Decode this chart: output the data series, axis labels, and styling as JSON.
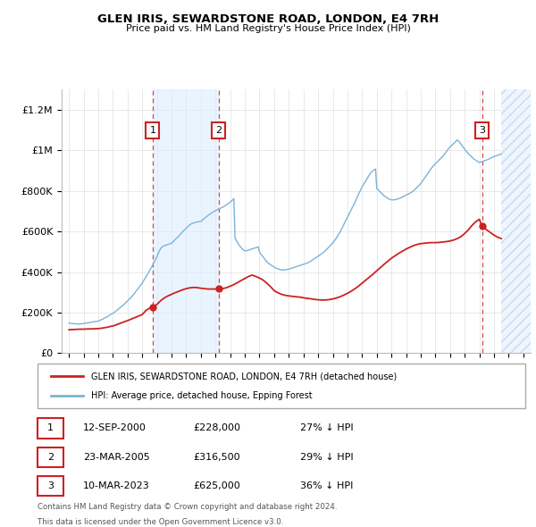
{
  "title": "GLEN IRIS, SEWARDSTONE ROAD, LONDON, E4 7RH",
  "subtitle": "Price paid vs. HM Land Registry's House Price Index (HPI)",
  "legend_line1": "GLEN IRIS, SEWARDSTONE ROAD, LONDON, E4 7RH (detached house)",
  "legend_line2": "HPI: Average price, detached house, Epping Forest",
  "footer1": "Contains HM Land Registry data © Crown copyright and database right 2024.",
  "footer2": "This data is licensed under the Open Government Licence v3.0.",
  "transactions": [
    {
      "num": 1,
      "date": "12-SEP-2000",
      "price": 228000,
      "pct": "27% ↓ HPI",
      "year": 2000.71
    },
    {
      "num": 2,
      "date": "23-MAR-2005",
      "price": 316500,
      "pct": "29% ↓ HPI",
      "year": 2005.22
    },
    {
      "num": 3,
      "date": "10-MAR-2023",
      "price": 625000,
      "pct": "36% ↓ HPI",
      "year": 2023.19
    }
  ],
  "hpi_color": "#7ab4d8",
  "price_color": "#cc2222",
  "vline_color": "#dd4444",
  "shade_color": "#ddeeff",
  "hatch_color": "#ccddee",
  "hpi_x": [
    1995.0,
    1995.08,
    1995.17,
    1995.25,
    1995.33,
    1995.42,
    1995.5,
    1995.58,
    1995.67,
    1995.75,
    1995.83,
    1995.92,
    1996.0,
    1996.08,
    1996.17,
    1996.25,
    1996.33,
    1996.42,
    1996.5,
    1996.58,
    1996.67,
    1996.75,
    1996.83,
    1996.92,
    1997.0,
    1997.08,
    1997.17,
    1997.25,
    1997.33,
    1997.42,
    1997.5,
    1997.58,
    1997.67,
    1997.75,
    1997.83,
    1997.92,
    1998.0,
    1998.08,
    1998.17,
    1998.25,
    1998.33,
    1998.42,
    1998.5,
    1998.58,
    1998.67,
    1998.75,
    1998.83,
    1998.92,
    1999.0,
    1999.08,
    1999.17,
    1999.25,
    1999.33,
    1999.42,
    1999.5,
    1999.58,
    1999.67,
    1999.75,
    1999.83,
    1999.92,
    2000.0,
    2000.08,
    2000.17,
    2000.25,
    2000.33,
    2000.42,
    2000.5,
    2000.58,
    2000.67,
    2000.75,
    2000.83,
    2000.92,
    2001.0,
    2001.08,
    2001.17,
    2001.25,
    2001.33,
    2001.42,
    2001.5,
    2001.58,
    2001.67,
    2001.75,
    2001.83,
    2001.92,
    2002.0,
    2002.08,
    2002.17,
    2002.25,
    2002.33,
    2002.42,
    2002.5,
    2002.58,
    2002.67,
    2002.75,
    2002.83,
    2002.92,
    2003.0,
    2003.08,
    2003.17,
    2003.25,
    2003.33,
    2003.42,
    2003.5,
    2003.58,
    2003.67,
    2003.75,
    2003.83,
    2003.92,
    2004.0,
    2004.08,
    2004.17,
    2004.25,
    2004.33,
    2004.42,
    2004.5,
    2004.58,
    2004.67,
    2004.75,
    2004.83,
    2004.92,
    2005.0,
    2005.08,
    2005.17,
    2005.25,
    2005.33,
    2005.42,
    2005.5,
    2005.58,
    2005.67,
    2005.75,
    2005.83,
    2005.92,
    2006.0,
    2006.08,
    2006.17,
    2006.25,
    2006.33,
    2006.42,
    2006.5,
    2006.58,
    2006.67,
    2006.75,
    2006.83,
    2006.92,
    2007.0,
    2007.08,
    2007.17,
    2007.25,
    2007.33,
    2007.42,
    2007.5,
    2007.58,
    2007.67,
    2007.75,
    2007.83,
    2007.92,
    2008.0,
    2008.08,
    2008.17,
    2008.25,
    2008.33,
    2008.42,
    2008.5,
    2008.58,
    2008.67,
    2008.75,
    2008.83,
    2008.92,
    2009.0,
    2009.08,
    2009.17,
    2009.25,
    2009.33,
    2009.42,
    2009.5,
    2009.58,
    2009.67,
    2009.75,
    2009.83,
    2009.92,
    2010.0,
    2010.08,
    2010.17,
    2010.25,
    2010.33,
    2010.42,
    2010.5,
    2010.58,
    2010.67,
    2010.75,
    2010.83,
    2010.92,
    2011.0,
    2011.08,
    2011.17,
    2011.25,
    2011.33,
    2011.42,
    2011.5,
    2011.58,
    2011.67,
    2011.75,
    2011.83,
    2011.92,
    2012.0,
    2012.08,
    2012.17,
    2012.25,
    2012.33,
    2012.42,
    2012.5,
    2012.58,
    2012.67,
    2012.75,
    2012.83,
    2012.92,
    2013.0,
    2013.08,
    2013.17,
    2013.25,
    2013.33,
    2013.42,
    2013.5,
    2013.58,
    2013.67,
    2013.75,
    2013.83,
    2013.92,
    2014.0,
    2014.08,
    2014.17,
    2014.25,
    2014.33,
    2014.42,
    2014.5,
    2014.58,
    2014.67,
    2014.75,
    2014.83,
    2014.92,
    2015.0,
    2015.08,
    2015.17,
    2015.25,
    2015.33,
    2015.42,
    2015.5,
    2015.58,
    2015.67,
    2015.75,
    2015.83,
    2015.92,
    2016.0,
    2016.08,
    2016.17,
    2016.25,
    2016.33,
    2016.42,
    2016.5,
    2016.58,
    2016.67,
    2016.75,
    2016.83,
    2016.92,
    2017.0,
    2017.08,
    2017.17,
    2017.25,
    2017.33,
    2017.42,
    2017.5,
    2017.58,
    2017.67,
    2017.75,
    2017.83,
    2017.92,
    2018.0,
    2018.08,
    2018.17,
    2018.25,
    2018.33,
    2018.42,
    2018.5,
    2018.58,
    2018.67,
    2018.75,
    2018.83,
    2018.92,
    2019.0,
    2019.08,
    2019.17,
    2019.25,
    2019.33,
    2019.42,
    2019.5,
    2019.58,
    2019.67,
    2019.75,
    2019.83,
    2019.92,
    2020.0,
    2020.08,
    2020.17,
    2020.25,
    2020.33,
    2020.42,
    2020.5,
    2020.58,
    2020.67,
    2020.75,
    2020.83,
    2020.92,
    2021.0,
    2021.08,
    2021.17,
    2021.25,
    2021.33,
    2021.42,
    2021.5,
    2021.58,
    2021.67,
    2021.75,
    2021.83,
    2021.92,
    2022.0,
    2022.08,
    2022.17,
    2022.25,
    2022.33,
    2022.42,
    2022.5,
    2022.58,
    2022.67,
    2022.75,
    2022.83,
    2022.92,
    2023.0,
    2023.08,
    2023.17,
    2023.25,
    2023.33,
    2023.42,
    2023.5,
    2023.58,
    2023.67,
    2023.75,
    2023.83,
    2023.92,
    2024.0,
    2024.08,
    2024.17,
    2024.25,
    2024.33,
    2024.42,
    2024.5
  ],
  "hpi_y": [
    148000,
    147000,
    146000,
    145500,
    145000,
    144500,
    144000,
    143500,
    143000,
    143500,
    144000,
    145000,
    146000,
    147000,
    148000,
    149000,
    150000,
    151000,
    152000,
    153000,
    154000,
    155000,
    156000,
    157000,
    158000,
    160000,
    163000,
    166000,
    169000,
    172000,
    175000,
    178000,
    182000,
    186000,
    190000,
    193000,
    196000,
    200000,
    205000,
    210000,
    215000,
    220000,
    225000,
    230000,
    235000,
    240000,
    246000,
    252000,
    258000,
    264000,
    270000,
    276000,
    282000,
    290000,
    298000,
    306000,
    314000,
    322000,
    330000,
    338000,
    346000,
    356000,
    366000,
    376000,
    386000,
    396000,
    406000,
    416000,
    428000,
    440000,
    452000,
    464000,
    476000,
    490000,
    504000,
    515000,
    522000,
    527000,
    530000,
    532000,
    534000,
    536000,
    538000,
    540000,
    542000,
    548000,
    554000,
    560000,
    566000,
    572000,
    578000,
    585000,
    592000,
    598000,
    604000,
    610000,
    616000,
    622000,
    628000,
    633000,
    637000,
    640000,
    642000,
    644000,
    646000,
    647000,
    648000,
    649000,
    650000,
    655000,
    660000,
    665000,
    670000,
    675000,
    680000,
    684000,
    688000,
    692000,
    696000,
    700000,
    703000,
    706000,
    709000,
    712000,
    715000,
    718000,
    720000,
    724000,
    728000,
    732000,
    736000,
    740000,
    744000,
    750000,
    756000,
    762000,
    568000,
    555000,
    545000,
    535000,
    527000,
    520000,
    514000,
    508000,
    505000,
    505000,
    506000,
    508000,
    510000,
    512000,
    514000,
    516000,
    518000,
    520000,
    522000,
    524000,
    498000,
    490000,
    482000,
    474000,
    466000,
    458000,
    450000,
    445000,
    440000,
    436000,
    432000,
    428000,
    424000,
    420000,
    418000,
    416000,
    414000,
    412000,
    410000,
    410000,
    410000,
    411000,
    412000,
    413000,
    414000,
    416000,
    418000,
    420000,
    422000,
    424000,
    426000,
    428000,
    430000,
    432000,
    434000,
    436000,
    438000,
    440000,
    442000,
    444000,
    447000,
    450000,
    454000,
    458000,
    462000,
    466000,
    470000,
    474000,
    478000,
    482000,
    486000,
    490000,
    495000,
    500000,
    506000,
    512000,
    518000,
    524000,
    530000,
    537000,
    544000,
    552000,
    560000,
    568000,
    578000,
    588000,
    598000,
    610000,
    622000,
    634000,
    646000,
    658000,
    670000,
    682000,
    694000,
    706000,
    718000,
    730000,
    742000,
    756000,
    770000,
    783000,
    796000,
    808000,
    820000,
    830000,
    840000,
    850000,
    860000,
    870000,
    880000,
    888000,
    895000,
    900000,
    904000,
    908000,
    812000,
    806000,
    800000,
    794000,
    788000,
    782000,
    776000,
    772000,
    768000,
    764000,
    760000,
    758000,
    756000,
    756000,
    756000,
    757000,
    758000,
    760000,
    762000,
    764000,
    767000,
    770000,
    773000,
    776000,
    779000,
    782000,
    785000,
    788000,
    792000,
    796000,
    800000,
    806000,
    812000,
    818000,
    824000,
    830000,
    836000,
    845000,
    854000,
    862000,
    870000,
    879000,
    888000,
    897000,
    906000,
    914000,
    921000,
    928000,
    934000,
    940000,
    946000,
    952000,
    958000,
    964000,
    970000,
    978000,
    986000,
    994000,
    1002000,
    1010000,
    1016000,
    1022000,
    1028000,
    1034000,
    1040000,
    1046000,
    1052000,
    1046000,
    1038000,
    1030000,
    1022000,
    1014000,
    1006000,
    998000,
    990000,
    984000,
    978000,
    972000,
    966000,
    960000,
    956000,
    952000,
    948000,
    944000,
    940000,
    942000,
    944000,
    946000,
    948000,
    950000,
    952000,
    955000,
    958000,
    961000,
    964000,
    967000,
    970000,
    972000,
    974000,
    976000,
    978000,
    980000,
    982000
  ],
  "price_x": [
    1995.0,
    1995.25,
    1995.5,
    1995.75,
    1996.0,
    1996.25,
    1996.5,
    1996.75,
    1997.0,
    1997.25,
    1997.5,
    1997.75,
    1998.0,
    1998.25,
    1998.5,
    1998.75,
    1999.0,
    1999.25,
    1999.5,
    1999.75,
    2000.0,
    2000.25,
    2000.5,
    2000.71,
    2001.0,
    2001.25,
    2001.5,
    2001.75,
    2002.0,
    2002.25,
    2002.5,
    2002.75,
    2003.0,
    2003.25,
    2003.5,
    2003.75,
    2004.0,
    2004.25,
    2004.5,
    2004.75,
    2005.0,
    2005.22,
    2005.5,
    2005.75,
    2006.0,
    2006.25,
    2006.5,
    2006.75,
    2007.0,
    2007.25,
    2007.5,
    2007.75,
    2008.0,
    2008.25,
    2008.5,
    2008.75,
    2009.0,
    2009.25,
    2009.5,
    2009.75,
    2010.0,
    2010.25,
    2010.5,
    2010.75,
    2011.0,
    2011.25,
    2011.5,
    2011.75,
    2012.0,
    2012.25,
    2012.5,
    2012.75,
    2013.0,
    2013.25,
    2013.5,
    2013.75,
    2014.0,
    2014.25,
    2014.5,
    2014.75,
    2015.0,
    2015.25,
    2015.5,
    2015.75,
    2016.0,
    2016.25,
    2016.5,
    2016.75,
    2017.0,
    2017.25,
    2017.5,
    2017.75,
    2018.0,
    2018.25,
    2018.5,
    2018.75,
    2019.0,
    2019.25,
    2019.5,
    2019.75,
    2020.0,
    2020.25,
    2020.5,
    2020.75,
    2021.0,
    2021.25,
    2021.5,
    2021.75,
    2022.0,
    2022.25,
    2022.5,
    2022.75,
    2023.0,
    2023.19,
    2023.5,
    2023.75,
    2024.0,
    2024.25,
    2024.5
  ],
  "price_y": [
    115000,
    116000,
    117000,
    118000,
    118000,
    119000,
    119500,
    120000,
    121000,
    123000,
    126000,
    130000,
    134000,
    140000,
    147000,
    154000,
    160000,
    168000,
    175000,
    183000,
    190000,
    210000,
    222000,
    228000,
    240000,
    258000,
    272000,
    282000,
    290000,
    298000,
    305000,
    312000,
    318000,
    322000,
    324000,
    323000,
    320000,
    318000,
    316000,
    316000,
    316000,
    316500,
    318000,
    323000,
    330000,
    338000,
    348000,
    358000,
    368000,
    378000,
    385000,
    378000,
    370000,
    360000,
    345000,
    328000,
    308000,
    298000,
    290000,
    285000,
    282000,
    280000,
    278000,
    276000,
    273000,
    270000,
    268000,
    265000,
    263000,
    262000,
    262000,
    264000,
    267000,
    272000,
    278000,
    286000,
    295000,
    305000,
    317000,
    330000,
    345000,
    360000,
    375000,
    390000,
    406000,
    422000,
    438000,
    453000,
    468000,
    480000,
    492000,
    503000,
    513000,
    522000,
    530000,
    536000,
    540000,
    542000,
    544000,
    545000,
    545000,
    546000,
    548000,
    550000,
    553000,
    558000,
    565000,
    575000,
    590000,
    608000,
    630000,
    648000,
    660000,
    625000,
    608000,
    595000,
    582000,
    572000,
    565000
  ],
  "ylim": [
    0,
    1300000
  ],
  "xlim": [
    1994.5,
    2026.5
  ],
  "yticks": [
    0,
    200000,
    400000,
    600000,
    800000,
    1000000,
    1200000
  ],
  "ytick_labels": [
    "£0",
    "£200K",
    "£400K",
    "£600K",
    "£800K",
    "£1M",
    "£1.2M"
  ],
  "xticks": [
    1995,
    1996,
    1997,
    1998,
    1999,
    2000,
    2001,
    2002,
    2003,
    2004,
    2005,
    2006,
    2007,
    2008,
    2009,
    2010,
    2011,
    2012,
    2013,
    2014,
    2015,
    2016,
    2017,
    2018,
    2019,
    2020,
    2021,
    2022,
    2023,
    2024,
    2025,
    2026
  ]
}
